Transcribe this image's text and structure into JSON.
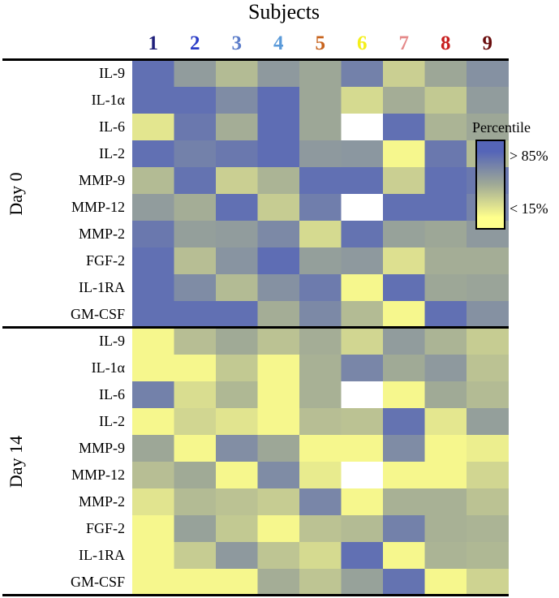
{
  "chart_data": {
    "type": "heatmap",
    "title": "Subjects",
    "columns": [
      "1",
      "2",
      "3",
      "4",
      "5",
      "6",
      "7",
      "8",
      "9"
    ],
    "column_colors": [
      "#1f1f7a",
      "#2a3cc7",
      "#5b7cc9",
      "#5a9ad9",
      "#c8641e",
      "#f4ef1a",
      "#e58a8a",
      "#c81e1e",
      "#6a0d0d"
    ],
    "groups": [
      {
        "name": "Day 0",
        "rows": [
          "IL-9",
          "IL-1α",
          "IL-6",
          "IL-2",
          "MMP-9",
          "MMP-12",
          "MMP-2",
          "FGF-2",
          "IL-1RA",
          "GM-CSF"
        ],
        "values": [
          [
            0.92,
            0.6,
            0.4,
            0.62,
            0.52,
            0.8,
            0.28,
            0.52,
            0.68
          ],
          [
            0.92,
            0.92,
            0.72,
            0.94,
            0.52,
            0.22,
            0.48,
            0.32,
            0.6
          ],
          [
            0.15,
            0.86,
            0.48,
            0.94,
            0.52,
            null,
            0.92,
            0.44,
            0.52
          ],
          [
            0.92,
            0.8,
            0.86,
            0.94,
            0.62,
            0.64,
            0.05,
            0.86,
            0.4
          ],
          [
            0.4,
            0.9,
            0.28,
            0.44,
            0.92,
            0.92,
            0.28,
            0.92,
            0.86
          ],
          [
            0.6,
            0.48,
            0.92,
            0.3,
            0.82,
            null,
            0.92,
            0.92,
            0.78
          ],
          [
            0.86,
            0.58,
            0.6,
            0.74,
            0.22,
            0.9,
            0.56,
            0.52,
            0.62
          ],
          [
            0.92,
            0.38,
            0.66,
            0.94,
            0.58,
            0.62,
            0.18,
            0.48,
            0.48
          ],
          [
            0.92,
            0.72,
            0.4,
            0.68,
            0.84,
            0.05,
            0.92,
            0.52,
            0.54
          ],
          [
            0.92,
            0.92,
            0.92,
            0.48,
            0.74,
            0.4,
            0.05,
            0.92,
            0.68
          ]
        ]
      },
      {
        "name": "Day 14",
        "rows": [
          "IL-9",
          "IL-1α",
          "IL-6",
          "IL-2",
          "MMP-9",
          "MMP-12",
          "MMP-2",
          "FGF-2",
          "IL-1RA",
          "GM-CSF"
        ],
        "values": [
          [
            0.05,
            0.38,
            0.5,
            0.36,
            0.48,
            0.24,
            0.6,
            0.44,
            0.3
          ],
          [
            0.05,
            0.05,
            0.32,
            0.05,
            0.46,
            0.76,
            0.5,
            0.62,
            0.36
          ],
          [
            0.8,
            0.2,
            0.42,
            0.05,
            0.46,
            null,
            0.05,
            0.5,
            0.4
          ],
          [
            0.05,
            0.24,
            0.16,
            0.05,
            0.38,
            0.36,
            0.9,
            0.14,
            0.58
          ],
          [
            0.52,
            0.05,
            0.7,
            0.52,
            0.05,
            0.05,
            0.72,
            0.05,
            0.1
          ],
          [
            0.38,
            0.5,
            0.05,
            0.72,
            0.12,
            null,
            0.05,
            0.05,
            0.24
          ],
          [
            0.16,
            0.4,
            0.36,
            0.3,
            0.76,
            0.05,
            0.46,
            0.46,
            0.36
          ],
          [
            0.05,
            0.56,
            0.32,
            0.05,
            0.36,
            0.4,
            0.8,
            0.46,
            0.44
          ],
          [
            0.05,
            0.3,
            0.62,
            0.34,
            0.22,
            0.92,
            0.05,
            0.44,
            0.42
          ],
          [
            0.05,
            0.05,
            0.05,
            0.48,
            0.34,
            0.56,
            0.9,
            0.05,
            0.26
          ]
        ]
      }
    ],
    "legend": {
      "title": "Percentile",
      "high_label": "> 85%",
      "low_label": "< 15%",
      "high_color": "#5565b8",
      "low_color": "#ffff8c",
      "position": "right"
    }
  }
}
